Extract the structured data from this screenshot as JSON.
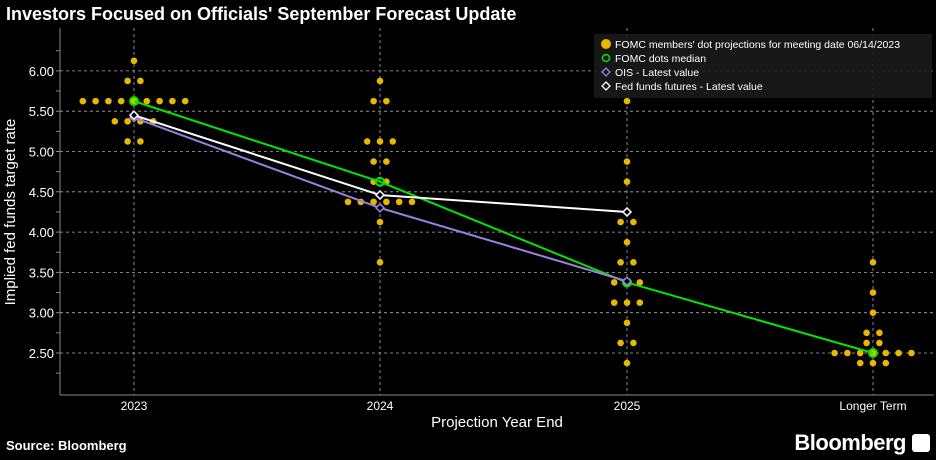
{
  "title": "Investors Focused on Officials' September Forecast Update",
  "source": "Source: Bloomberg",
  "brand": "Bloomberg",
  "chart_data": {
    "type": "scatter",
    "title": "Investors Focused on Officials' September Forecast Update",
    "xlabel": "Projection Year End",
    "ylabel": "Implied fed funds target rate",
    "categories": [
      "2023",
      "2024",
      "2025",
      "Longer Term"
    ],
    "ylim": [
      2.2,
      6.4
    ],
    "yticks": [
      "2.50",
      "3.00",
      "3.50",
      "4.00",
      "4.50",
      "5.00",
      "5.50",
      "6.00"
    ],
    "grid": true,
    "legend_position": "top-right",
    "dots": [
      [
        [
          6.125,
          1
        ],
        [
          5.875,
          2
        ],
        [
          5.625,
          9
        ],
        [
          5.375,
          4
        ],
        [
          5.125,
          2
        ]
      ],
      [
        [
          5.875,
          1
        ],
        [
          5.625,
          2
        ],
        [
          5.125,
          3
        ],
        [
          4.875,
          2
        ],
        [
          4.625,
          2
        ],
        [
          4.375,
          6
        ],
        [
          4.125,
          1
        ],
        [
          3.625,
          1
        ]
      ],
      [
        [
          5.625,
          1
        ],
        [
          4.875,
          1
        ],
        [
          4.625,
          1
        ],
        [
          4.125,
          2
        ],
        [
          3.875,
          1
        ],
        [
          3.625,
          2
        ],
        [
          3.375,
          3
        ],
        [
          3.125,
          3
        ],
        [
          2.875,
          1
        ],
        [
          2.625,
          2
        ],
        [
          2.375,
          1
        ]
      ],
      [
        [
          3.625,
          1
        ],
        [
          3.25,
          1
        ],
        [
          3.0,
          1
        ],
        [
          2.75,
          2
        ],
        [
          2.625,
          2
        ],
        [
          2.5,
          7
        ],
        [
          2.375,
          3
        ]
      ]
    ],
    "series": [
      {
        "name": "FOMC members' dot projections for meeting date 06/14/2023",
        "color": "#e8b800",
        "kind": "dots"
      },
      {
        "name": "FOMC dots median",
        "color": "#00e600",
        "values": [
          5.625,
          4.625,
          3.375,
          2.5
        ]
      },
      {
        "name": "OIS - Latest value",
        "color": "#9a7fe0",
        "values": [
          5.42,
          4.3,
          3.39
        ]
      },
      {
        "name": "Fed funds futures - Latest value",
        "color": "#ffffff",
        "values": [
          5.45,
          4.46,
          4.25
        ]
      }
    ]
  }
}
